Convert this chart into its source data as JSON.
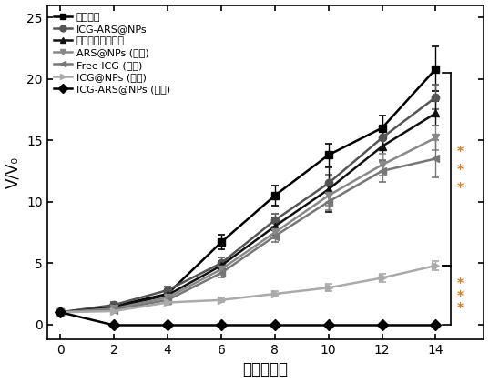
{
  "x": [
    0,
    2,
    4,
    6,
    8,
    10,
    12,
    14
  ],
  "series": [
    {
      "label": "生理盐水",
      "y": [
        1,
        1.5,
        2.5,
        6.7,
        10.5,
        13.8,
        16.0,
        20.8
      ],
      "yerr": [
        0,
        0.2,
        0.4,
        0.6,
        0.8,
        0.9,
        1.0,
        1.8
      ],
      "color": "#000000",
      "marker": "s",
      "markersize": 6
    },
    {
      "label": "ICG-ARS@NPs",
      "y": [
        1,
        1.6,
        2.8,
        5.0,
        8.5,
        11.5,
        15.2,
        18.5
      ],
      "yerr": [
        0,
        0.2,
        0.3,
        0.5,
        0.5,
        0.7,
        0.9,
        1.0
      ],
      "color": "#555555",
      "marker": "o",
      "markersize": 6
    },
    {
      "label": "生理盐水（光照）",
      "y": [
        1,
        1.4,
        2.4,
        4.8,
        8.0,
        11.0,
        14.5,
        17.2
      ],
      "yerr": [
        0,
        0.2,
        0.3,
        0.4,
        0.7,
        1.8,
        1.2,
        1.0
      ],
      "color": "#111111",
      "marker": "^",
      "markersize": 6
    },
    {
      "label": "ARS@NPs (光照)",
      "y": [
        1,
        1.3,
        2.2,
        4.5,
        7.5,
        10.5,
        13.0,
        15.2
      ],
      "yerr": [
        0,
        0.2,
        0.3,
        0.4,
        0.5,
        0.8,
        0.9,
        1.0
      ],
      "color": "#888888",
      "marker": "v",
      "markersize": 6
    },
    {
      "label": "Free ICG (光照)",
      "y": [
        1,
        1.2,
        2.0,
        4.2,
        7.2,
        10.0,
        12.5,
        13.5
      ],
      "yerr": [
        0,
        0.2,
        0.3,
        0.4,
        0.5,
        0.7,
        0.9,
        1.5
      ],
      "color": "#777777",
      "marker": "<",
      "markersize": 6
    },
    {
      "label": "ICG@NPs (光照)",
      "y": [
        1,
        1.1,
        1.8,
        2.0,
        2.5,
        3.0,
        3.8,
        4.8
      ],
      "yerr": [
        0,
        0.1,
        0.2,
        0.2,
        0.2,
        0.3,
        0.3,
        0.4
      ],
      "color": "#aaaaaa",
      "marker": ">",
      "markersize": 6
    },
    {
      "label": "ICG-ARS@NPs (光照)",
      "y": [
        1,
        -0.05,
        -0.05,
        -0.05,
        -0.05,
        -0.05,
        -0.05,
        -0.05
      ],
      "yerr": [
        0,
        0.03,
        0.03,
        0.03,
        0.03,
        0.03,
        0.03,
        0.03
      ],
      "color": "#000000",
      "marker": "D",
      "markersize": 6
    }
  ],
  "xlabel": "时间（天）",
  "ylabel": "V/V₀",
  "xlim": [
    -0.5,
    15.8
  ],
  "ylim": [
    -1.2,
    26
  ],
  "xticks": [
    0,
    2,
    4,
    6,
    8,
    10,
    12,
    14
  ],
  "yticks": [
    0,
    5,
    10,
    15,
    20,
    25
  ],
  "figsize": [
    5.37,
    4.21
  ],
  "dpi": 100,
  "linewidth": 1.8,
  "capsize": 3,
  "stars_color": "#e8771e",
  "bracket_color": "#000000"
}
